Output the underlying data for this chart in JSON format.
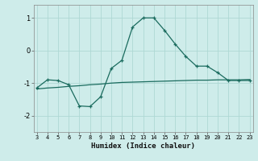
{
  "xlabel": "Humidex (Indice chaleur)",
  "background_color": "#ceecea",
  "grid_color": "#aed8d4",
  "line_color": "#1a6b5e",
  "x_min": 3,
  "x_max": 23,
  "y_min": -2.5,
  "y_max": 1.4,
  "yticks": [
    -2,
    -1,
    0,
    1
  ],
  "xticks": [
    3,
    4,
    5,
    6,
    7,
    8,
    9,
    10,
    11,
    12,
    13,
    14,
    15,
    16,
    17,
    18,
    19,
    20,
    21,
    22,
    23
  ],
  "curve_x": [
    3,
    4,
    5,
    6,
    7,
    8,
    9,
    10,
    11,
    12,
    13,
    14,
    15,
    16,
    17,
    18,
    19,
    20,
    21,
    22,
    23
  ],
  "curve_y": [
    -1.15,
    -0.9,
    -0.92,
    -1.05,
    -1.7,
    -1.72,
    -1.42,
    -0.55,
    -0.3,
    0.72,
    1.0,
    1.0,
    0.62,
    0.2,
    -0.18,
    -0.48,
    -0.48,
    -0.68,
    -0.92,
    -0.92,
    -0.92
  ],
  "smooth_x": [
    3,
    4,
    5,
    6,
    7,
    8,
    9,
    10,
    11,
    12,
    13,
    14,
    15,
    16,
    17,
    18,
    19,
    20,
    21,
    22,
    23
  ],
  "smooth_y": [
    -1.18,
    -1.15,
    -1.13,
    -1.1,
    -1.08,
    -1.05,
    -1.03,
    -1.0,
    -0.98,
    -0.97,
    -0.96,
    -0.95,
    -0.94,
    -0.93,
    -0.92,
    -0.91,
    -0.91,
    -0.9,
    -0.9,
    -0.9,
    -0.89
  ]
}
